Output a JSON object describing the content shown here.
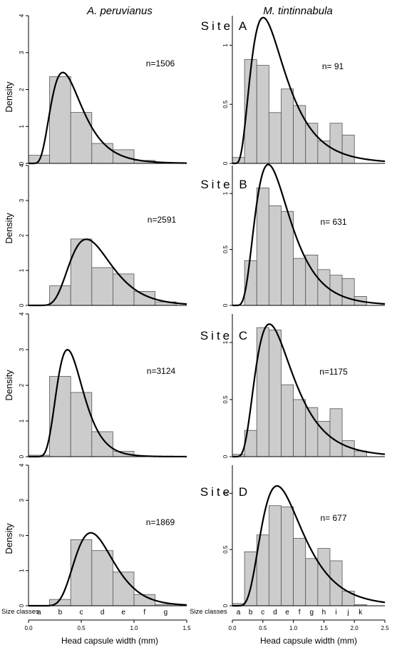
{
  "columns": {
    "left_title": "A. peruvianus",
    "right_title": "M. tintinnabula"
  },
  "sites": [
    "Site A",
    "Site B",
    "Site C",
    "Site D"
  ],
  "ylabel": "Density",
  "xlabel": "Head capsule width (mm)",
  "size_classes_label": "Size classes",
  "colors": {
    "bar_fill": "#cccccc",
    "bar_stroke": "#555555",
    "curve": "#000000"
  },
  "chart_data": [
    {
      "type": "bar",
      "site": "Site A",
      "species": "A. peruvianus",
      "n_label": "n=1506",
      "bin_edges": [
        0.0,
        0.2,
        0.4,
        0.6,
        0.8,
        1.0,
        1.2,
        1.4
      ],
      "values": [
        0.22,
        2.35,
        1.38,
        0.54,
        0.37,
        0.08,
        0.02
      ],
      "curve": {
        "type": "lognormal",
        "mu": -0.92,
        "sigma": 0.45
      },
      "xlim": [
        0.0,
        1.5
      ],
      "ylim": [
        0,
        4
      ],
      "yticks": [
        0,
        1,
        2,
        3,
        4
      ],
      "xticks": [],
      "size_classes": []
    },
    {
      "type": "bar",
      "site": "Site A",
      "species": "M. tintinnabula",
      "n_label": "n= 91",
      "bin_edges": [
        0.0,
        0.2,
        0.4,
        0.6,
        0.8,
        1.0,
        1.2,
        1.4,
        1.6,
        1.8,
        2.0
      ],
      "values": [
        0.05,
        0.88,
        0.83,
        0.43,
        0.63,
        0.49,
        0.34,
        0.19,
        0.34,
        0.24
      ],
      "curve": {
        "type": "lognormal",
        "mu": -0.38,
        "sigma": 0.55
      },
      "xlim": [
        0.0,
        2.5
      ],
      "ylim": [
        0,
        1.25
      ],
      "yticks": [
        0,
        0.5,
        1.0
      ],
      "xticks": [],
      "size_classes": []
    },
    {
      "type": "bar",
      "site": "Site B",
      "species": "A. peruvianus",
      "n_label": "n=2591",
      "bin_edges": [
        0.0,
        0.2,
        0.4,
        0.6,
        0.8,
        1.0,
        1.2,
        1.4
      ],
      "values": [
        0.0,
        0.56,
        1.9,
        1.08,
        0.9,
        0.4,
        0.1
      ],
      "curve": {
        "type": "lognormal",
        "mu": -0.47,
        "sigma": 0.36
      },
      "xlim": [
        0.0,
        1.5
      ],
      "ylim": [
        0,
        4
      ],
      "yticks": [
        0,
        1,
        2,
        3,
        4
      ],
      "xticks": [],
      "size_classes": []
    },
    {
      "type": "bar",
      "site": "Site B",
      "species": "M. tintinnabula",
      "n_label": "n= 631",
      "bin_edges": [
        0.0,
        0.2,
        0.4,
        0.6,
        0.8,
        1.0,
        1.2,
        1.4,
        1.6,
        1.8,
        2.0,
        2.2
      ],
      "values": [
        0.0,
        0.4,
        1.05,
        0.89,
        0.84,
        0.42,
        0.45,
        0.32,
        0.27,
        0.24,
        0.08
      ],
      "curve": {
        "type": "lognormal",
        "mu": -0.3,
        "sigma": 0.48
      },
      "xlim": [
        0.0,
        2.5
      ],
      "ylim": [
        0,
        1.25
      ],
      "yticks": [
        0,
        0.5,
        1.0
      ],
      "xticks": [],
      "size_classes": []
    },
    {
      "type": "bar",
      "site": "Site C",
      "species": "A. peruvianus",
      "n_label": "n=3124",
      "bin_edges": [
        0.0,
        0.2,
        0.4,
        0.6,
        0.8,
        1.0
      ],
      "values": [
        0.04,
        2.25,
        1.8,
        0.7,
        0.15
      ],
      "curve": {
        "type": "lognormal",
        "mu": -0.88,
        "sigma": 0.34
      },
      "xlim": [
        0.0,
        1.5
      ],
      "ylim": [
        0,
        4
      ],
      "yticks": [
        0,
        1,
        2,
        3,
        4
      ],
      "xticks": [],
      "size_classes": []
    },
    {
      "type": "bar",
      "site": "Site C",
      "species": "M. tintinnabula",
      "n_label": "n=1175",
      "bin_edges": [
        0.0,
        0.2,
        0.4,
        0.6,
        0.8,
        1.0,
        1.2,
        1.4,
        1.6,
        1.8,
        2.0,
        2.2
      ],
      "values": [
        0.02,
        0.23,
        1.13,
        1.11,
        0.63,
        0.5,
        0.43,
        0.31,
        0.42,
        0.14,
        0.05
      ],
      "curve": {
        "type": "lognormal",
        "mu": -0.25,
        "sigma": 0.5
      },
      "xlim": [
        0.0,
        2.5
      ],
      "ylim": [
        0,
        1.25
      ],
      "yticks": [
        0,
        0.5,
        1.0
      ],
      "xticks": [],
      "size_classes": []
    },
    {
      "type": "bar",
      "site": "Site D",
      "species": "A. peruvianus",
      "n_label": "n=1869",
      "bin_edges": [
        0.0,
        0.2,
        0.4,
        0.6,
        0.8,
        1.0,
        1.2,
        1.4
      ],
      "values": [
        0.0,
        0.18,
        1.88,
        1.57,
        0.96,
        0.32,
        0.04
      ],
      "curve": {
        "type": "lognormal",
        "mu": -0.43,
        "sigma": 0.31
      },
      "xlim": [
        0.0,
        1.5
      ],
      "ylim": [
        0,
        4
      ],
      "yticks": [
        0,
        1,
        2,
        3,
        4
      ],
      "xticks": [
        0.0,
        0.5,
        1.0,
        1.5
      ],
      "size_classes": [
        {
          "label": "a",
          "x": 0.1
        },
        {
          "label": "b",
          "x": 0.3
        },
        {
          "label": "c",
          "x": 0.5
        },
        {
          "label": "d",
          "x": 0.7
        },
        {
          "label": "e",
          "x": 0.9
        },
        {
          "label": "f",
          "x": 1.1
        },
        {
          "label": "g",
          "x": 1.3
        }
      ]
    },
    {
      "type": "bar",
      "site": "Site D",
      "species": "M. tintinnabula",
      "n_label": "n= 677",
      "bin_edges": [
        0.0,
        0.2,
        0.4,
        0.6,
        0.8,
        1.0,
        1.2,
        1.4,
        1.6,
        1.8,
        2.0,
        2.2
      ],
      "values": [
        0.02,
        0.48,
        0.63,
        0.89,
        0.88,
        0.6,
        0.42,
        0.51,
        0.4,
        0.13,
        0.01
      ],
      "curve": {
        "type": "lognormal",
        "mu": -0.1,
        "sigma": 0.46
      },
      "xlim": [
        0.0,
        2.5
      ],
      "ylim": [
        0,
        1.25
      ],
      "yticks": [
        0,
        0.5,
        1.0
      ],
      "xticks": [
        0.0,
        0.5,
        1.0,
        1.5,
        2.0,
        2.5
      ],
      "size_classes": [
        {
          "label": "a",
          "x": 0.1
        },
        {
          "label": "b",
          "x": 0.3
        },
        {
          "label": "c",
          "x": 0.5
        },
        {
          "label": "d",
          "x": 0.7
        },
        {
          "label": "e",
          "x": 0.9
        },
        {
          "label": "f",
          "x": 1.1
        },
        {
          "label": "g",
          "x": 1.3
        },
        {
          "label": "h",
          "x": 1.5
        },
        {
          "label": "i",
          "x": 1.7
        },
        {
          "label": "j",
          "x": 1.9
        },
        {
          "label": "k",
          "x": 2.1
        }
      ]
    }
  ]
}
